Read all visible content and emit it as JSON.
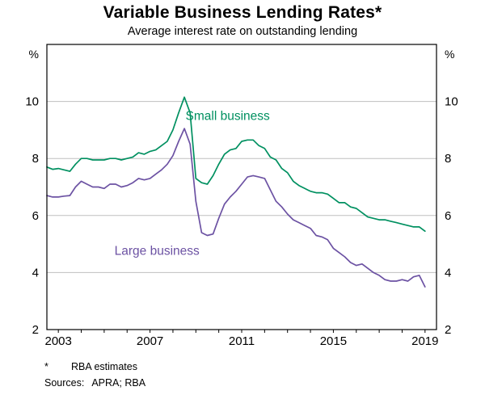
{
  "title": "Variable Business Lending Rates*",
  "subtitle": "Average interest rate on outstanding lending",
  "footnote": {
    "marker": "*",
    "text": "RBA estimates"
  },
  "sources": {
    "label": "Sources:",
    "text": "APRA; RBA"
  },
  "chart_data": {
    "type": "line",
    "title": "Variable Business Lending Rates*",
    "subtitle": "Average interest rate on outstanding lending",
    "unit_label": "%",
    "ylabel": "%",
    "ylim": [
      2,
      12
    ],
    "yticks": [
      2,
      4,
      6,
      8,
      10
    ],
    "grid_yticks": [
      4,
      6,
      8,
      10
    ],
    "grid": true,
    "frame": true,
    "xlim": [
      2002.5,
      2019.5
    ],
    "xtick_labels": [
      "2003",
      "2007",
      "2011",
      "2015",
      "2019"
    ],
    "xtick_label_values": [
      2003,
      2007,
      2011,
      2015,
      2019
    ],
    "xtick_minor_start": 2003,
    "xtick_minor_end": 2019,
    "legend_position": "inline-labels",
    "x_start": 2002.5,
    "x_step": 0.25,
    "series": [
      {
        "name": "Small business",
        "color": "#009060",
        "label_at": {
          "x": 2008.55,
          "y": 9.35
        },
        "values": [
          7.7,
          7.62,
          7.65,
          7.6,
          7.55,
          7.8,
          8.0,
          8.0,
          7.95,
          7.95,
          7.95,
          8.0,
          8.0,
          7.95,
          8.0,
          8.05,
          8.2,
          8.15,
          8.25,
          8.3,
          8.45,
          8.6,
          9.0,
          9.6,
          10.15,
          9.6,
          7.3,
          7.15,
          7.1,
          7.4,
          7.8,
          8.15,
          8.3,
          8.35,
          8.6,
          8.65,
          8.65,
          8.45,
          8.35,
          8.05,
          7.95,
          7.65,
          7.5,
          7.2,
          7.05,
          6.95,
          6.85,
          6.8,
          6.8,
          6.75,
          6.6,
          6.45,
          6.45,
          6.3,
          6.25,
          6.1,
          5.95,
          5.9,
          5.85,
          5.85,
          5.8,
          5.75,
          5.7,
          5.65,
          5.6,
          5.6,
          5.45
        ]
      },
      {
        "name": "Large business",
        "color": "#6C52A3",
        "label_at": {
          "x": 2005.45,
          "y": 4.62
        },
        "values": [
          6.7,
          6.65,
          6.65,
          6.68,
          6.7,
          7.0,
          7.2,
          7.1,
          7.0,
          7.0,
          6.95,
          7.1,
          7.1,
          7.0,
          7.05,
          7.15,
          7.3,
          7.25,
          7.3,
          7.45,
          7.6,
          7.8,
          8.1,
          8.6,
          9.05,
          8.5,
          6.5,
          5.4,
          5.3,
          5.35,
          5.9,
          6.4,
          6.65,
          6.85,
          7.1,
          7.35,
          7.4,
          7.35,
          7.3,
          6.9,
          6.5,
          6.3,
          6.05,
          5.85,
          5.75,
          5.65,
          5.55,
          5.3,
          5.25,
          5.15,
          4.85,
          4.7,
          4.55,
          4.35,
          4.25,
          4.3,
          4.15,
          4.0,
          3.9,
          3.75,
          3.7,
          3.7,
          3.75,
          3.7,
          3.85,
          3.9,
          3.5
        ]
      }
    ]
  }
}
